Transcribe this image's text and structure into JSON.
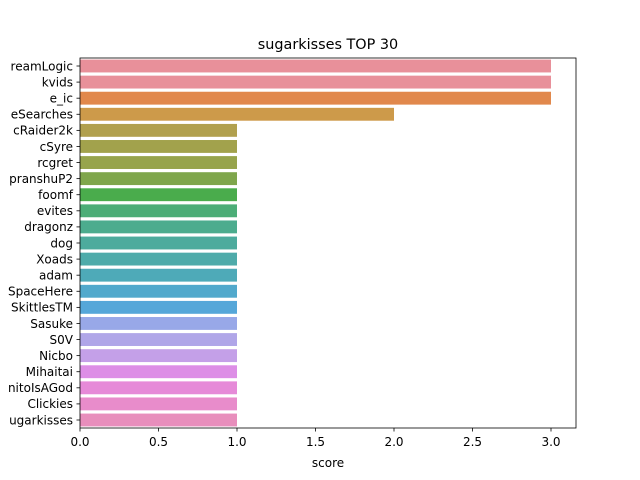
{
  "chart_data": {
    "type": "bar",
    "orientation": "horizontal",
    "title": "sugarkisses TOP 30",
    "xlabel": "score",
    "ylabel": "",
    "xlim": [
      0,
      3.15
    ],
    "xticks": [
      "0.0",
      "0.5",
      "1.0",
      "1.5",
      "2.0",
      "2.5",
      "3.0"
    ],
    "grid": false,
    "legend": "none",
    "categories": [
      "reamLogic",
      "kvids",
      "e_ic",
      "eSearches",
      "cRaider2k",
      "cSyre",
      "rcgret",
      "pranshuP2",
      "foomf",
      "evites",
      "dragonz",
      "dog",
      "Xoads",
      "adam",
      "SpaceHere",
      "SkittlesTM",
      "Sasuke",
      "S0V",
      "Nicbo",
      "Mihaitai",
      "nitoIsAGod",
      "Clickies",
      "ugarkisses"
    ],
    "values": [
      3,
      3,
      3,
      2,
      1,
      1,
      1,
      1,
      1,
      1,
      1,
      1,
      1,
      1,
      1,
      1,
      1,
      1,
      1,
      1,
      1,
      1,
      1
    ],
    "colors": [
      "#e8909a",
      "#e8909a",
      "#e1884c",
      "#cd9a4a",
      "#b1a04e",
      "#a2a24c",
      "#97a44c",
      "#7fa64c",
      "#4aac4c",
      "#4cad77",
      "#4cac8e",
      "#4dab9d",
      "#4eabaa",
      "#4eaab8",
      "#51a9cc",
      "#55a7d9",
      "#98a8e8",
      "#b0a6e8",
      "#c4a0e8",
      "#dd8ee6",
      "#e68ad8",
      "#e88ccb",
      "#e88ebc"
    ]
  }
}
